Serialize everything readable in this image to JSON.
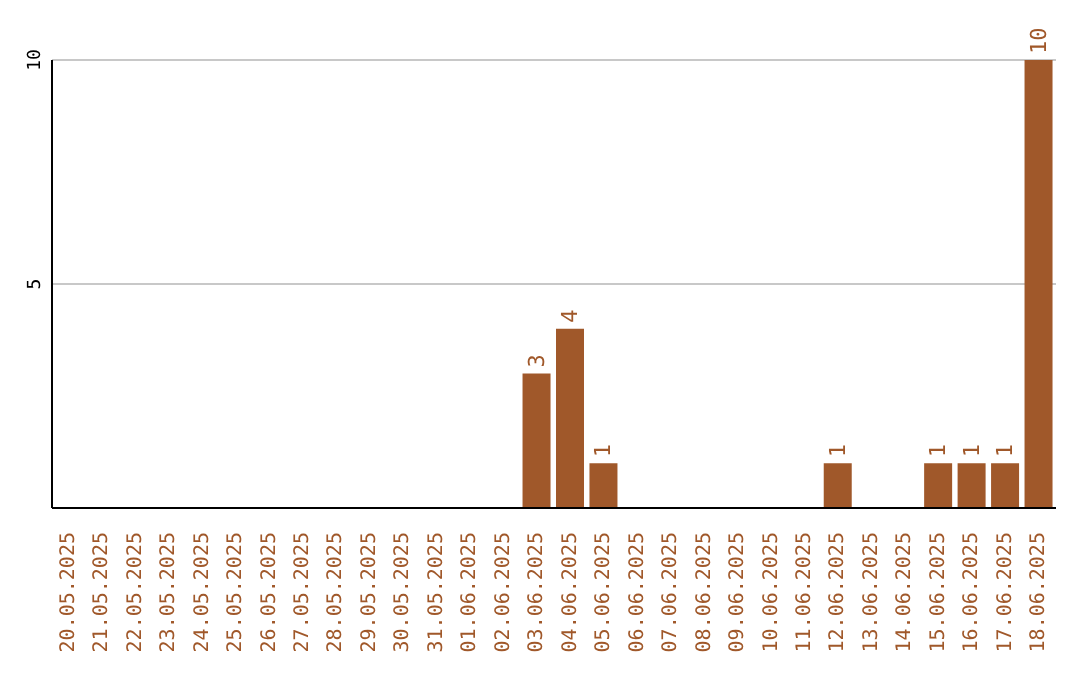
{
  "chart_data": {
    "type": "bar",
    "categories": [
      "20.05.2025",
      "21.05.2025",
      "22.05.2025",
      "23.05.2025",
      "24.05.2025",
      "25.05.2025",
      "26.05.2025",
      "27.05.2025",
      "28.05.2025",
      "29.05.2025",
      "30.05.2025",
      "31.05.2025",
      "01.06.2025",
      "02.06.2025",
      "03.06.2025",
      "04.06.2025",
      "05.06.2025",
      "06.06.2025",
      "07.06.2025",
      "08.06.2025",
      "09.06.2025",
      "10.06.2025",
      "11.06.2025",
      "12.06.2025",
      "13.06.2025",
      "14.06.2025",
      "15.06.2025",
      "16.06.2025",
      "17.06.2025",
      "18.06.2025"
    ],
    "values": [
      0,
      0,
      0,
      0,
      0,
      0,
      0,
      0,
      0,
      0,
      0,
      0,
      0,
      0,
      3,
      4,
      1,
      0,
      0,
      0,
      0,
      0,
      0,
      1,
      0,
      0,
      1,
      1,
      1,
      10
    ],
    "value_labels": [
      null,
      null,
      null,
      null,
      null,
      null,
      null,
      null,
      null,
      null,
      null,
      null,
      null,
      null,
      "3",
      "4",
      "1",
      null,
      null,
      null,
      null,
      null,
      null,
      "1",
      null,
      null,
      "1",
      "1",
      "1",
      "10"
    ],
    "color": "#a0582a",
    "ylim": [
      0,
      10
    ],
    "yticks": [
      5,
      10
    ],
    "grid": "y",
    "legend": false
  }
}
